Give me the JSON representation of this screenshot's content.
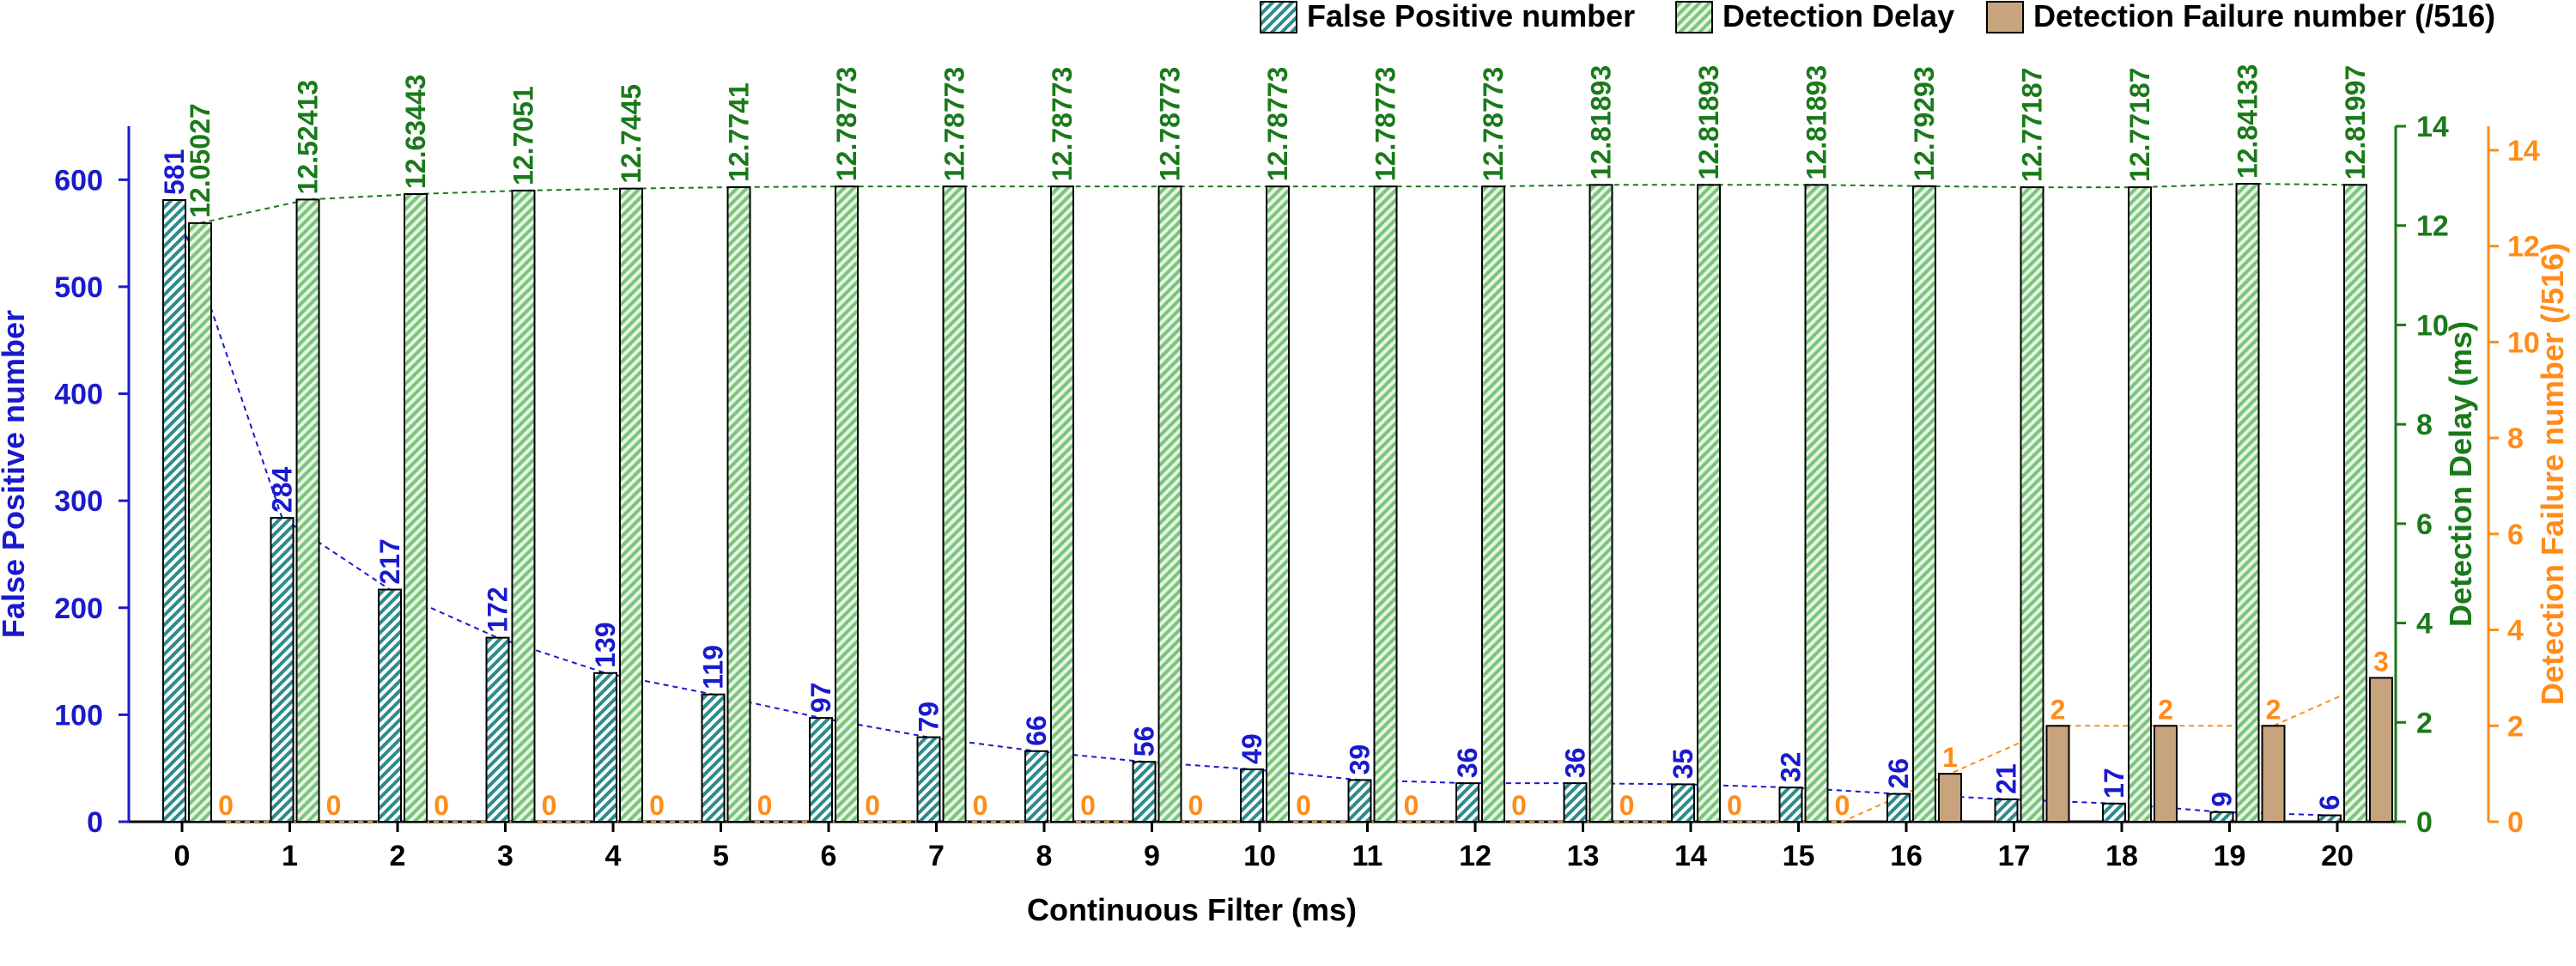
{
  "chart_data": {
    "type": "bar",
    "xlabel": "Continuous Filter (ms)",
    "categories": [
      "0",
      "1",
      "2",
      "3",
      "4",
      "5",
      "6",
      "7",
      "8",
      "9",
      "10",
      "11",
      "12",
      "13",
      "14",
      "15",
      "16",
      "17",
      "18",
      "19",
      "20"
    ],
    "series": [
      {
        "name": "False Positive number",
        "axis": "left",
        "ylabel": "False Positive number",
        "ylim": [
          0,
          650
        ],
        "ticks": [
          "0",
          "100",
          "200",
          "300",
          "400",
          "500",
          "600"
        ],
        "color": "#1a1acc",
        "fill": "#2e8b8b",
        "values": [
          581,
          284,
          217,
          172,
          139,
          119,
          97,
          79,
          66,
          56,
          49,
          39,
          36,
          36,
          35,
          32,
          26,
          21,
          17,
          9,
          6
        ],
        "labels": [
          "581",
          "284",
          "217",
          "172",
          "139",
          "119",
          "97",
          "79",
          "66",
          "56",
          "49",
          "39",
          "36",
          "36",
          "35",
          "32",
          "26",
          "21",
          "17",
          "9",
          "6"
        ]
      },
      {
        "name": "Detection Delay",
        "axis": "right1",
        "ylabel": "Detection Delay (ms)",
        "ylim": [
          0,
          14
        ],
        "ticks": [
          "0",
          "2",
          "4",
          "6",
          "8",
          "10",
          "12",
          "14"
        ],
        "color": "#1a7a1a",
        "fill": "#9ed69e",
        "values": [
          12.05027,
          12.52413,
          12.63443,
          12.7051,
          12.7445,
          12.7741,
          12.78773,
          12.78773,
          12.78773,
          12.78773,
          12.78773,
          12.78773,
          12.78773,
          12.81893,
          12.81893,
          12.81893,
          12.79293,
          12.77187,
          12.77187,
          12.84133,
          12.81997
        ],
        "labels": [
          "12.05027",
          "12.52413",
          "12.63443",
          "12.7051",
          "12.7445",
          "12.7741",
          "12.78773",
          "12.78773",
          "12.78773",
          "12.78773",
          "12.78773",
          "12.78773",
          "12.78773",
          "12.81893",
          "12.81893",
          "12.81893",
          "12.79293",
          "12.77187",
          "12.77187",
          "12.84133",
          "12.81997"
        ]
      },
      {
        "name": "Detection Failure number (/516)",
        "axis": "right2",
        "ylabel": "Detection Failure number (/516)",
        "ylim": [
          0,
          14.5
        ],
        "ticks": [
          "0",
          "2",
          "4",
          "6",
          "8",
          "10",
          "12",
          "14"
        ],
        "color": "#ff8c1a",
        "fill": "#c8a47e",
        "values": [
          0,
          0,
          0,
          0,
          0,
          0,
          0,
          0,
          0,
          0,
          0,
          0,
          0,
          0,
          0,
          0,
          1,
          2,
          2,
          2,
          3
        ],
        "labels": [
          "0",
          "0",
          "0",
          "0",
          "0",
          "0",
          "0",
          "0",
          "0",
          "0",
          "0",
          "0",
          "0",
          "0",
          "0",
          "0",
          "1",
          "2",
          "2",
          "2",
          "3"
        ]
      }
    ],
    "legend": "top-right",
    "grid": false,
    "trend_lines": true
  }
}
